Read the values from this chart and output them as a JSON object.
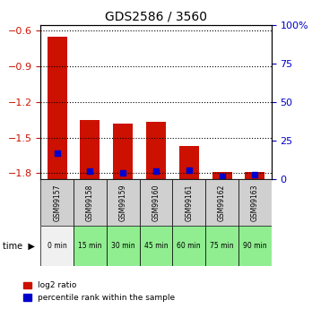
{
  "title": "GDS2586 / 3560",
  "samples": [
    "GSM99157",
    "GSM99158",
    "GSM99159",
    "GSM99160",
    "GSM99161",
    "GSM99162",
    "GSM99163"
  ],
  "time_labels": [
    "0 min",
    "15 min",
    "30 min",
    "45 min",
    "60 min",
    "75 min",
    "90 min"
  ],
  "log2_ratio": [
    -0.65,
    -1.35,
    -1.38,
    -1.37,
    -1.57,
    -1.79,
    -1.79
  ],
  "percentile_rank": [
    17,
    5,
    4,
    5,
    6,
    2,
    3
  ],
  "ylim_left": [
    -1.85,
    -0.55
  ],
  "ylim_right": [
    0,
    100
  ],
  "yticks_left": [
    -1.8,
    -1.5,
    -1.2,
    -0.9,
    -0.6
  ],
  "yticks_right": [
    0,
    25,
    50,
    75,
    100
  ],
  "bar_color": "#cc1100",
  "marker_color": "#0000cc",
  "grid_color": "#000000",
  "title_color": "#000000",
  "left_tick_color": "#cc1100",
  "right_tick_color": "#0000cc",
  "bg_plot": "#ffffff",
  "bg_gsm": "#d0d0d0",
  "bg_time_white": "#f0f0f0",
  "bg_time_green": "#90ee90",
  "legend_red_label": "log2 ratio",
  "legend_blue_label": "percentile rank within the sample",
  "bar_width": 0.6
}
